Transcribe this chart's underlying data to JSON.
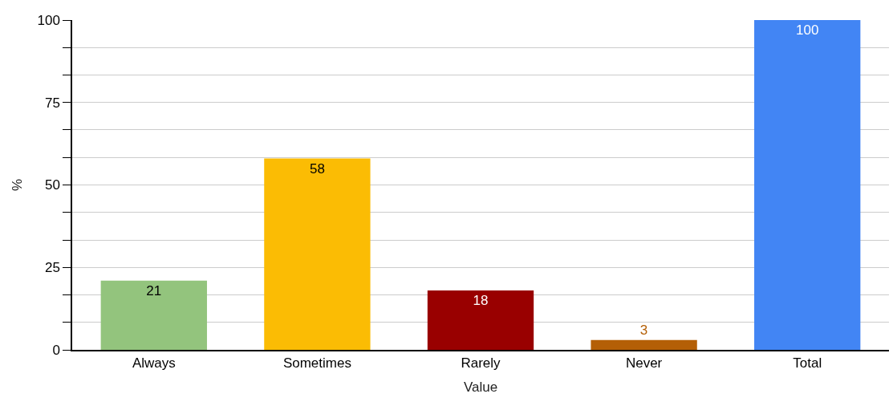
{
  "chart_data": {
    "type": "bar",
    "xlabel": "Value",
    "ylabel": "%",
    "categories": [
      "Always",
      "Sometimes",
      "Rarely",
      "Never",
      "Total"
    ],
    "values": [
      21,
      58,
      18,
      3,
      100
    ],
    "colors": [
      "#93c47d",
      "#fbbc04",
      "#990000",
      "#b45f06",
      "#4285f4"
    ],
    "ylim": [
      0,
      100
    ],
    "yticks": [
      0,
      {
        "value": 8.33,
        "label": null
      },
      {
        "value": 16.67,
        "label": null
      },
      25,
      {
        "value": 33.33,
        "label": null
      },
      {
        "value": 41.67,
        "label": null
      },
      50,
      {
        "value": 58.33,
        "label": null
      },
      {
        "value": 66.67,
        "label": null
      },
      75,
      {
        "value": 83.33,
        "label": null
      },
      {
        "value": 91.67,
        "label": null
      },
      100
    ],
    "grid": "y",
    "data_labels": true
  }
}
